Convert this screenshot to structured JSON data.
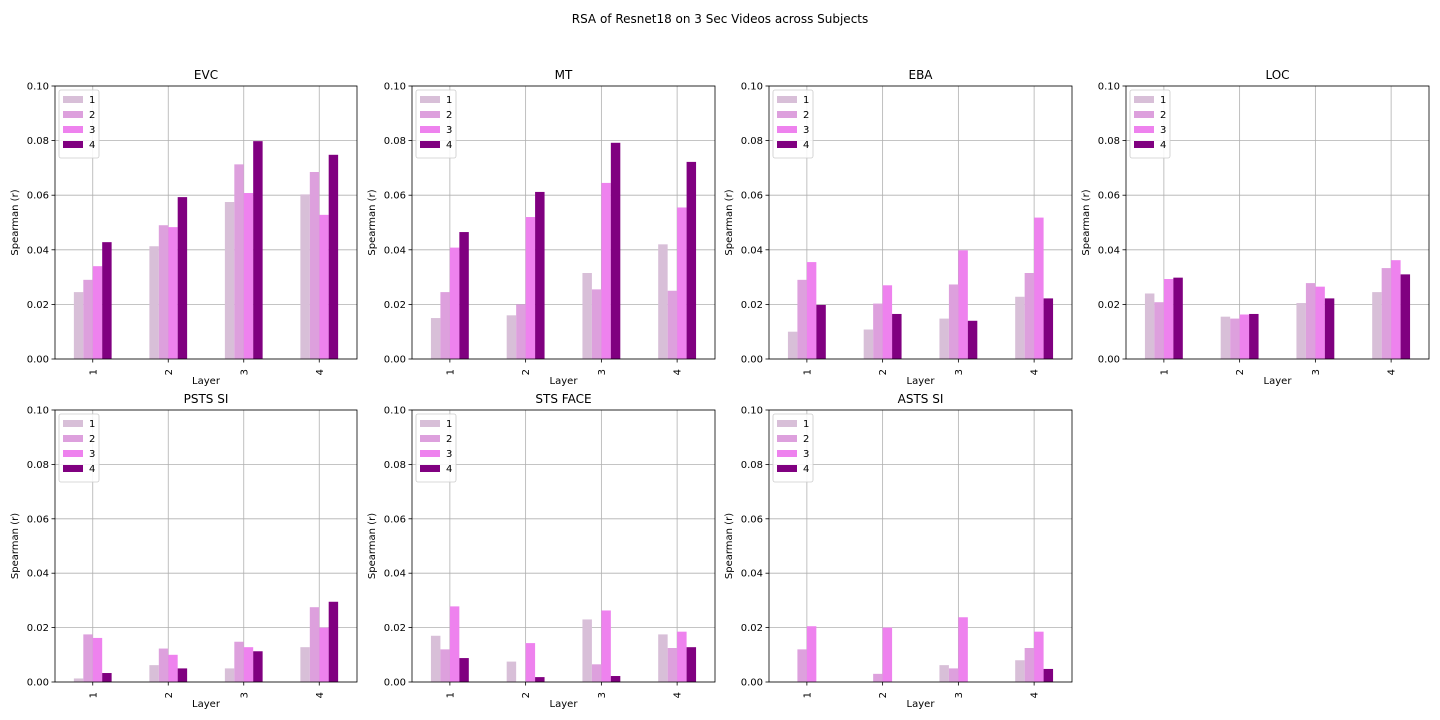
{
  "figure": {
    "title": "RSA of Resnet18 on 3 Sec Videos across Subjects"
  },
  "chart_data": [
    {
      "type": "bar",
      "title": "EVC",
      "xlabel": "Layer",
      "ylabel": "Spearman (r)",
      "categories": [
        "1",
        "2",
        "3",
        "4"
      ],
      "ylim": [
        0,
        0.1
      ],
      "yticks": [
        "0.00",
        "0.02",
        "0.04",
        "0.06",
        "0.08",
        "0.10"
      ],
      "grid": true,
      "legend": "top-left",
      "series": [
        {
          "name": "1",
          "color": "#d8bfd8",
          "values": [
            0.0245,
            0.0413,
            0.0575,
            0.0603
          ]
        },
        {
          "name": "2",
          "color": "#dda0dd",
          "values": [
            0.029,
            0.049,
            0.0713,
            0.0685
          ]
        },
        {
          "name": "3",
          "color": "#ee82ee",
          "values": [
            0.034,
            0.0483,
            0.0608,
            0.0528
          ]
        },
        {
          "name": "4",
          "color": "#800080",
          "values": [
            0.0428,
            0.0593,
            0.0798,
            0.0748
          ]
        }
      ]
    },
    {
      "type": "bar",
      "title": "MT",
      "xlabel": "Layer",
      "ylabel": "Spearman (r)",
      "categories": [
        "1",
        "2",
        "3",
        "4"
      ],
      "ylim": [
        0,
        0.1
      ],
      "yticks": [
        "0.00",
        "0.02",
        "0.04",
        "0.06",
        "0.08",
        "0.10"
      ],
      "grid": true,
      "legend": "top-left",
      "series": [
        {
          "name": "1",
          "color": "#d8bfd8",
          "values": [
            0.015,
            0.016,
            0.0315,
            0.042
          ]
        },
        {
          "name": "2",
          "color": "#dda0dd",
          "values": [
            0.0245,
            0.02,
            0.0255,
            0.025
          ]
        },
        {
          "name": "3",
          "color": "#ee82ee",
          "values": [
            0.0408,
            0.052,
            0.0645,
            0.0555
          ]
        },
        {
          "name": "4",
          "color": "#800080",
          "values": [
            0.0465,
            0.0612,
            0.0792,
            0.0722
          ]
        }
      ]
    },
    {
      "type": "bar",
      "title": "EBA",
      "xlabel": "Layer",
      "ylabel": "Spearman (r)",
      "categories": [
        "1",
        "2",
        "3",
        "4"
      ],
      "ylim": [
        0,
        0.1
      ],
      "yticks": [
        "0.00",
        "0.02",
        "0.04",
        "0.06",
        "0.08",
        "0.10"
      ],
      "grid": true,
      "legend": "top-left",
      "series": [
        {
          "name": "1",
          "color": "#d8bfd8",
          "values": [
            0.01,
            0.0108,
            0.0148,
            0.0228
          ]
        },
        {
          "name": "2",
          "color": "#dda0dd",
          "values": [
            0.029,
            0.0203,
            0.0273,
            0.0315
          ]
        },
        {
          "name": "3",
          "color": "#ee82ee",
          "values": [
            0.0355,
            0.027,
            0.0398,
            0.0518
          ]
        },
        {
          "name": "4",
          "color": "#800080",
          "values": [
            0.0198,
            0.0165,
            0.014,
            0.0222
          ]
        }
      ]
    },
    {
      "type": "bar",
      "title": "LOC",
      "xlabel": "Layer",
      "ylabel": "Spearman (r)",
      "categories": [
        "1",
        "2",
        "3",
        "4"
      ],
      "ylim": [
        0,
        0.1
      ],
      "yticks": [
        "0.00",
        "0.02",
        "0.04",
        "0.06",
        "0.08",
        "0.10"
      ],
      "grid": true,
      "legend": "top-left",
      "series": [
        {
          "name": "1",
          "color": "#d8bfd8",
          "values": [
            0.024,
            0.0155,
            0.0205,
            0.0245
          ]
        },
        {
          "name": "2",
          "color": "#dda0dd",
          "values": [
            0.0208,
            0.0148,
            0.0278,
            0.0333
          ]
        },
        {
          "name": "3",
          "color": "#ee82ee",
          "values": [
            0.0293,
            0.0163,
            0.0265,
            0.0362
          ]
        },
        {
          "name": "4",
          "color": "#800080",
          "values": [
            0.0298,
            0.0165,
            0.0222,
            0.031
          ]
        }
      ]
    },
    {
      "type": "bar",
      "title": "PSTS SI",
      "xlabel": "Layer",
      "ylabel": "Spearman (r)",
      "categories": [
        "1",
        "2",
        "3",
        "4"
      ],
      "ylim": [
        0,
        0.1
      ],
      "yticks": [
        "0.00",
        "0.02",
        "0.04",
        "0.06",
        "0.08",
        "0.10"
      ],
      "grid": true,
      "legend": "top-left",
      "series": [
        {
          "name": "1",
          "color": "#d8bfd8",
          "values": [
            0.0013,
            0.0062,
            0.005,
            0.0128
          ]
        },
        {
          "name": "2",
          "color": "#dda0dd",
          "values": [
            0.0175,
            0.0123,
            0.0148,
            0.0275
          ]
        },
        {
          "name": "3",
          "color": "#ee82ee",
          "values": [
            0.0162,
            0.01,
            0.0128,
            0.02
          ]
        },
        {
          "name": "4",
          "color": "#800080",
          "values": [
            0.0033,
            0.005,
            0.0113,
            0.0295
          ]
        }
      ]
    },
    {
      "type": "bar",
      "title": "STS FACE",
      "xlabel": "Layer",
      "ylabel": "Spearman (r)",
      "categories": [
        "1",
        "2",
        "3",
        "4"
      ],
      "ylim": [
        0,
        0.1
      ],
      "yticks": [
        "0.00",
        "0.02",
        "0.04",
        "0.06",
        "0.08",
        "0.10"
      ],
      "grid": true,
      "legend": "top-left",
      "series": [
        {
          "name": "1",
          "color": "#d8bfd8",
          "values": [
            0.017,
            0.0075,
            0.023,
            0.0175
          ]
        },
        {
          "name": "2",
          "color": "#dda0dd",
          "values": [
            0.012,
            0.0,
            0.0065,
            0.0125
          ]
        },
        {
          "name": "3",
          "color": "#ee82ee",
          "values": [
            0.0278,
            0.0143,
            0.0263,
            0.0185
          ]
        },
        {
          "name": "4",
          "color": "#800080",
          "values": [
            0.0088,
            0.0018,
            0.0022,
            0.0128
          ]
        }
      ]
    },
    {
      "type": "bar",
      "title": "ASTS SI",
      "xlabel": "Layer",
      "ylabel": "Spearman (r)",
      "categories": [
        "1",
        "2",
        "3",
        "4"
      ],
      "ylim": [
        0,
        0.1
      ],
      "yticks": [
        "0.00",
        "0.02",
        "0.04",
        "0.06",
        "0.08",
        "0.10"
      ],
      "grid": true,
      "legend": "top-left",
      "series": [
        {
          "name": "1",
          "color": "#d8bfd8",
          "values": [
            0.0,
            0.0,
            0.0062,
            0.008
          ]
        },
        {
          "name": "2",
          "color": "#dda0dd",
          "values": [
            0.012,
            0.003,
            0.005,
            0.0125
          ]
        },
        {
          "name": "3",
          "color": "#ee82ee",
          "values": [
            0.0205,
            0.02,
            0.0238,
            0.0185
          ]
        },
        {
          "name": "4",
          "color": "#800080",
          "values": [
            0.0,
            0.0,
            0.0,
            0.0048
          ]
        }
      ]
    }
  ]
}
